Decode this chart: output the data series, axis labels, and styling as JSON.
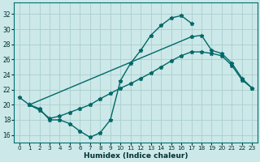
{
  "xlabel": "Humidex (Indice chaleur)",
  "bg_color": "#cce8e8",
  "grid_color": "#aacece",
  "line_color": "#006868",
  "xlim": [
    -0.5,
    23.5
  ],
  "ylim": [
    15,
    33.5
  ],
  "xticks": [
    0,
    1,
    2,
    3,
    4,
    5,
    6,
    7,
    8,
    9,
    10,
    11,
    12,
    13,
    14,
    15,
    16,
    17,
    18,
    19,
    20,
    21,
    22,
    23
  ],
  "yticks": [
    16,
    18,
    20,
    22,
    24,
    26,
    28,
    30,
    32
  ],
  "curve1_x": [
    0,
    1,
    2,
    3,
    4,
    5,
    6,
    7,
    8,
    9,
    10,
    11,
    12,
    13,
    14,
    15,
    16,
    17
  ],
  "curve1_y": [
    21.0,
    20.0,
    19.5,
    18.0,
    18.0,
    17.5,
    16.5,
    15.7,
    16.3,
    18.0,
    23.2,
    25.5,
    27.2,
    29.2,
    30.5,
    31.5,
    31.8,
    30.8
  ],
  "curve2_x": [
    1,
    2,
    3,
    4,
    5,
    6,
    7,
    8,
    9,
    10,
    11,
    12,
    13,
    14,
    15,
    16,
    17,
    18,
    19,
    20,
    21,
    22,
    23
  ],
  "curve2_y": [
    20.0,
    19.3,
    18.2,
    18.5,
    19.0,
    19.5,
    20.0,
    20.8,
    21.5,
    22.2,
    22.8,
    23.5,
    24.2,
    25.0,
    25.8,
    26.5,
    27.0,
    27.0,
    26.8,
    26.5,
    25.2,
    23.3,
    22.2
  ],
  "curve3_x": [
    1,
    17,
    18,
    19,
    20,
    21,
    22,
    23
  ],
  "curve3_y": [
    20.0,
    29.0,
    29.2,
    27.2,
    26.8,
    25.5,
    23.5,
    22.2
  ]
}
